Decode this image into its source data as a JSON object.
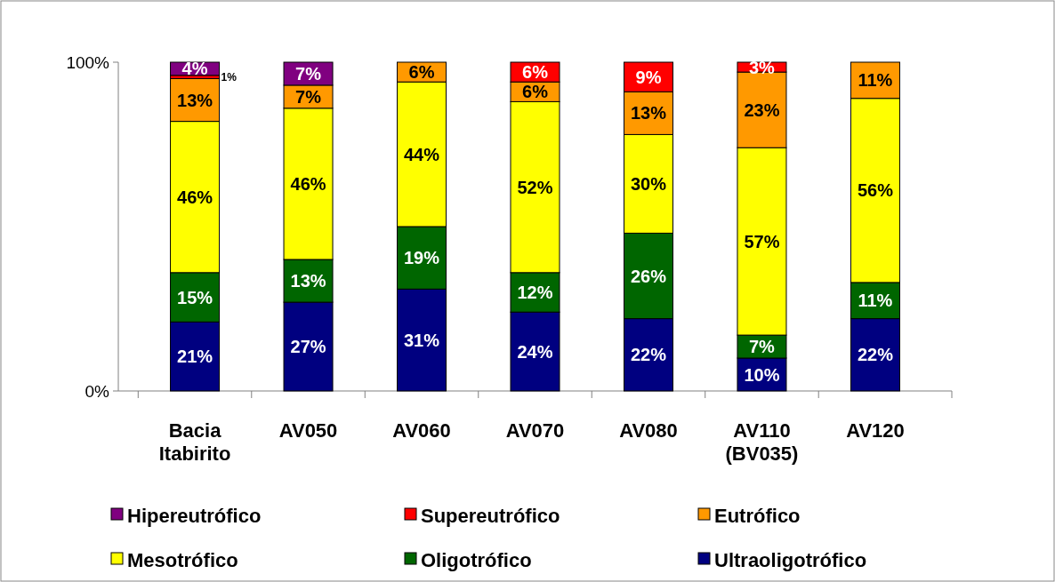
{
  "chart_data": {
    "type": "bar",
    "stacked": true,
    "categories": [
      "Bacia Itabirito",
      "AV050",
      "AV060",
      "AV070",
      "AV080",
      "AV110 (BV035)",
      "AV120"
    ],
    "ylim": [
      0,
      100
    ],
    "yticks": [
      {
        "value": 0,
        "label": "0%"
      },
      {
        "value": 100,
        "label": "100%"
      }
    ],
    "grid": false,
    "legend": "bottom",
    "series": [
      {
        "name": "Ultraoligotrófico",
        "color": "#000080",
        "values": [
          21,
          27,
          31,
          24,
          22,
          10,
          22
        ],
        "value_labels": [
          "21%",
          "27%",
          "31%",
          "24%",
          "22%",
          "10%",
          "22%"
        ]
      },
      {
        "name": "Oligotrófico",
        "color": "#006600",
        "values": [
          15,
          13,
          19,
          12,
          26,
          7,
          11
        ],
        "value_labels": [
          "15%",
          "13%",
          "19%",
          "12%",
          "26%",
          "7%",
          "11%"
        ]
      },
      {
        "name": "Mesotrófico",
        "color": "#ffff00",
        "values": [
          46,
          46,
          44,
          52,
          30,
          57,
          56
        ],
        "value_labels": [
          "46%",
          "46%",
          "44%",
          "52%",
          "30%",
          "57%",
          "56%"
        ]
      },
      {
        "name": "Eutrófico",
        "color": "#ff9900",
        "values": [
          13,
          7,
          6,
          6,
          13,
          23,
          11
        ],
        "value_labels": [
          "13%",
          "7%",
          "6%",
          "6%",
          "13%",
          "23%",
          "11%"
        ]
      },
      {
        "name": "Supereutrófico",
        "color": "#ff0000",
        "values": [
          1,
          null,
          null,
          6,
          9,
          3,
          null
        ],
        "value_labels": [
          "1%",
          null,
          null,
          "6%",
          "9%",
          "3%",
          null
        ]
      },
      {
        "name": "Hipereutrófico",
        "color": "#800080",
        "values": [
          4,
          7,
          null,
          null,
          null,
          null,
          null
        ],
        "value_labels": [
          "4%",
          "7%",
          null,
          null,
          null,
          null,
          null
        ]
      }
    ]
  }
}
